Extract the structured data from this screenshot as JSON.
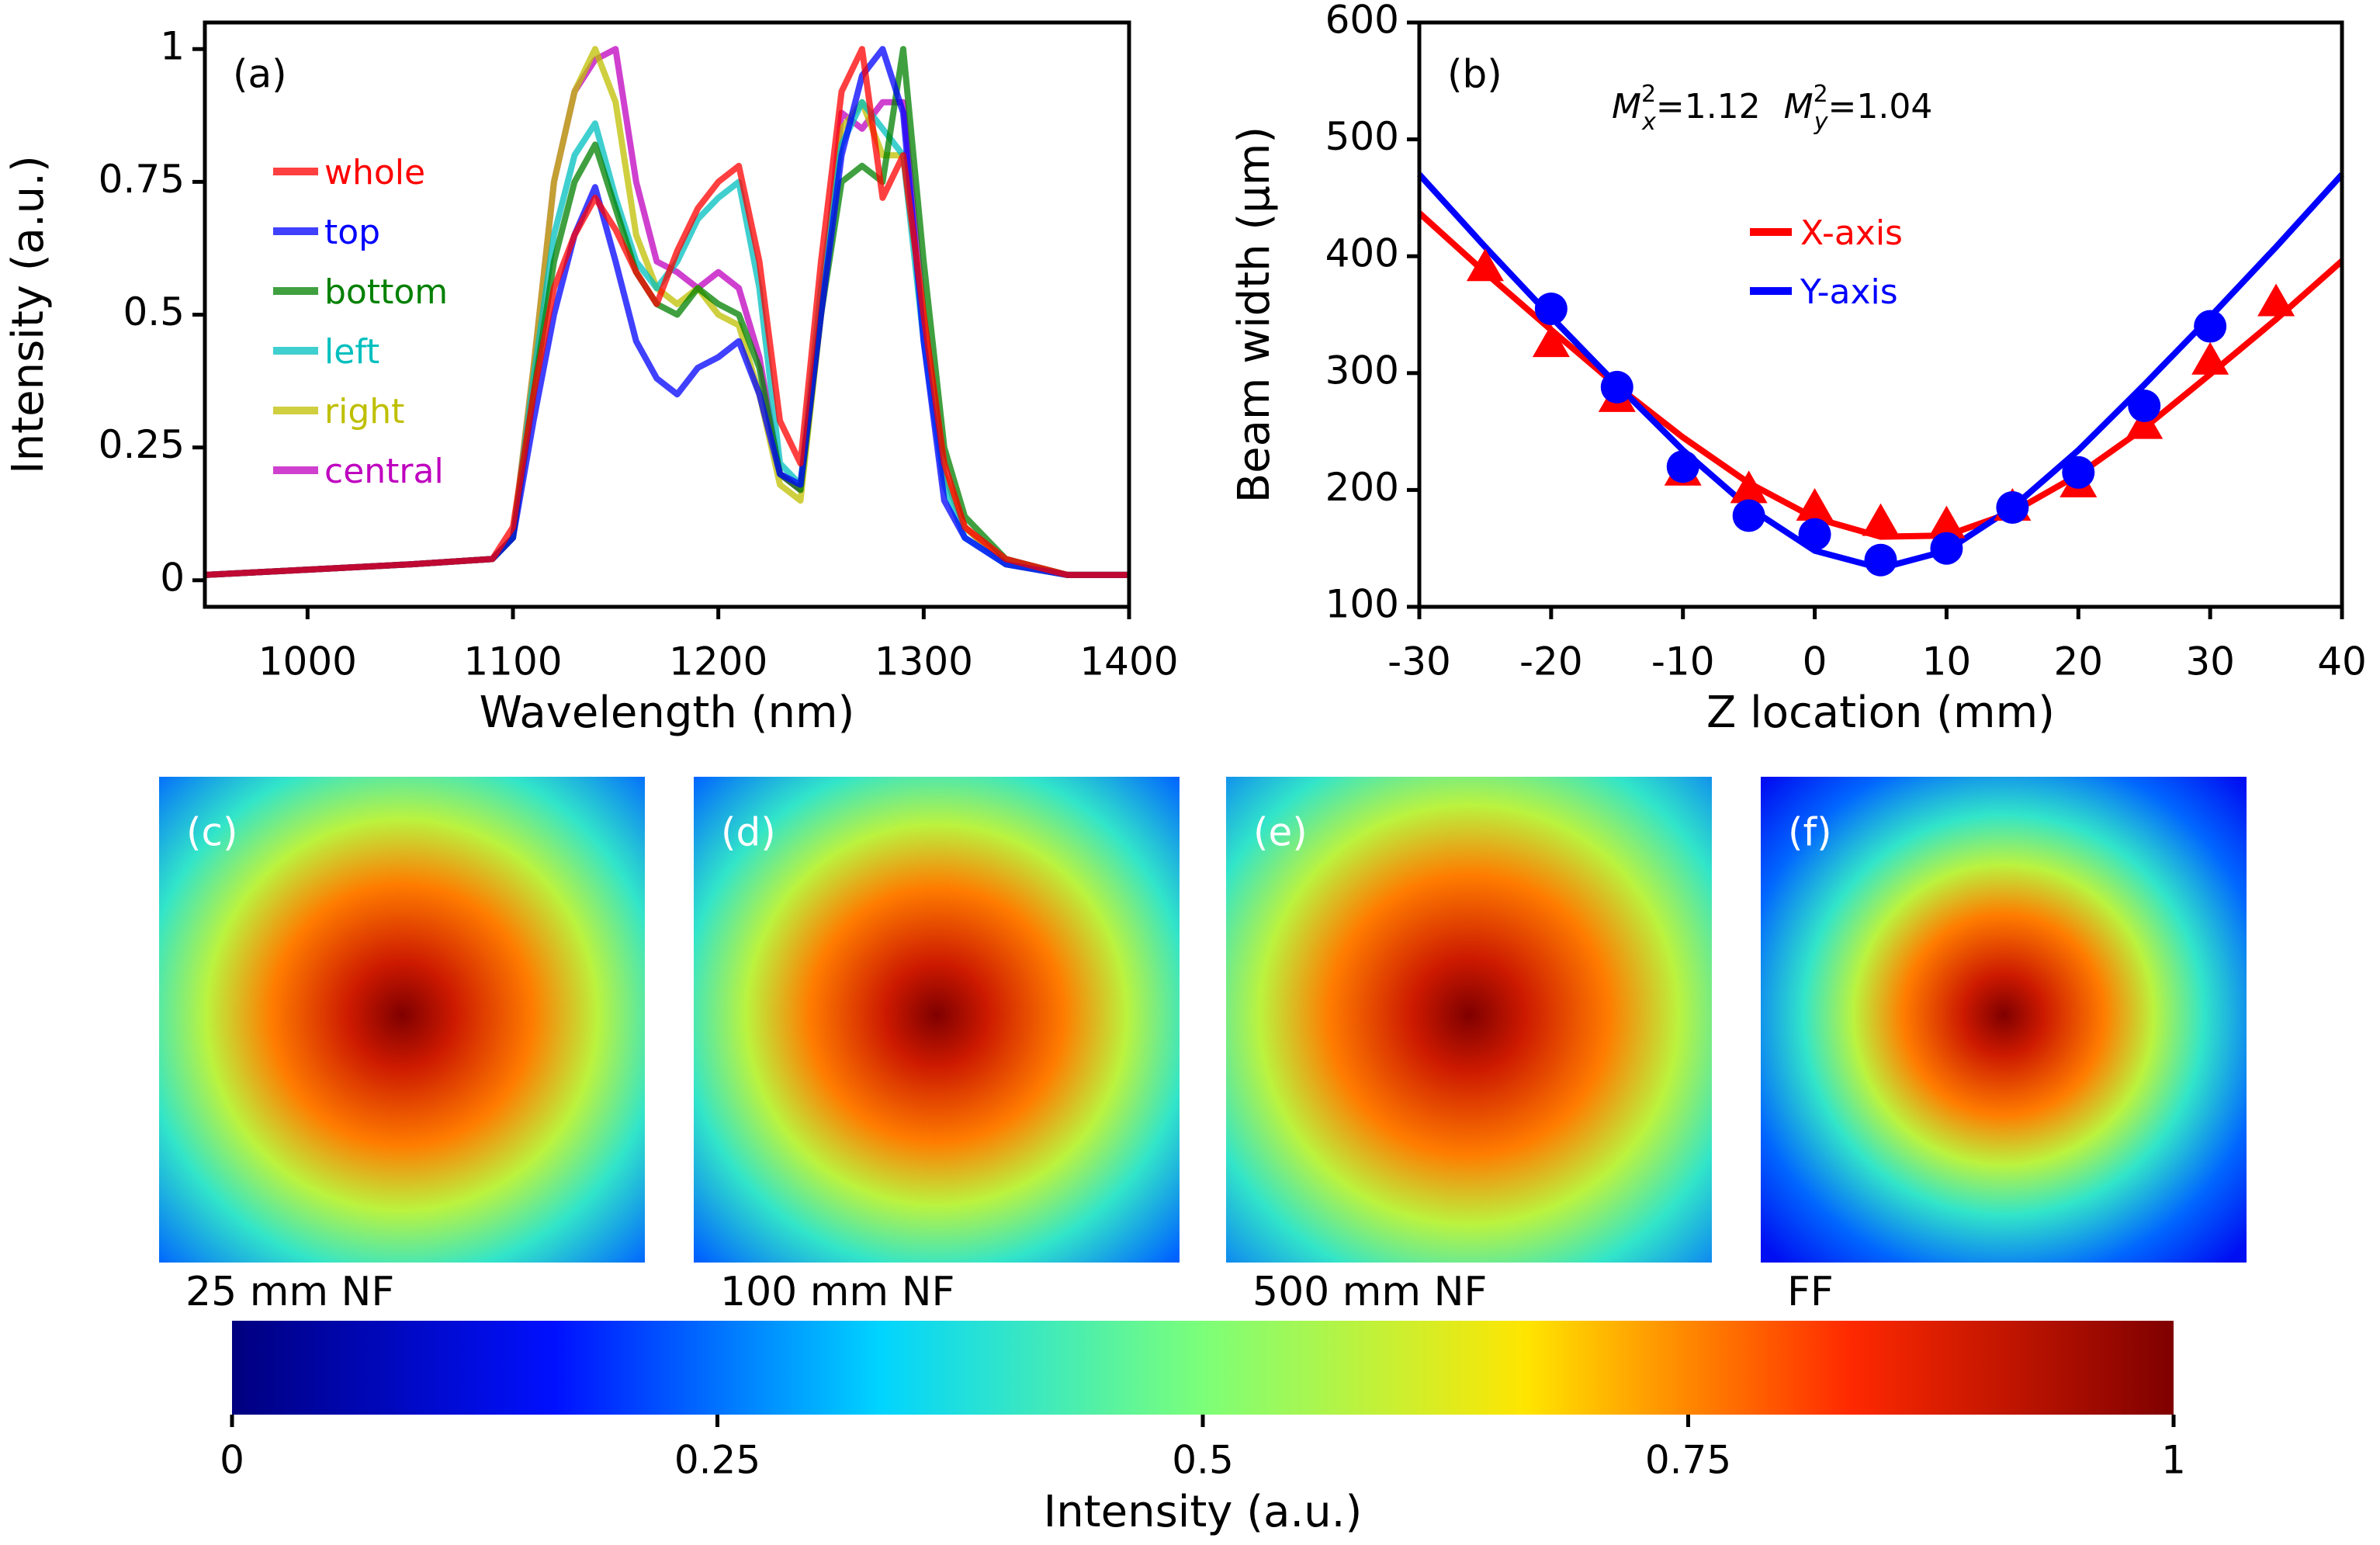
{
  "chart_data": [
    {
      "type": "line",
      "label": "(a)",
      "xlabel": "Wavelength (nm)",
      "ylabel": "Intensity (a.u.)",
      "x": [
        950,
        1000,
        1050,
        1090,
        1100,
        1110,
        1120,
        1130,
        1140,
        1150,
        1160,
        1170,
        1180,
        1190,
        1200,
        1210,
        1220,
        1230,
        1240,
        1250,
        1260,
        1270,
        1280,
        1290,
        1300,
        1310,
        1320,
        1340,
        1370,
        1400
      ],
      "xlim": [
        950,
        1400
      ],
      "xticks": [
        1000,
        1100,
        1200,
        1300,
        1400
      ],
      "ylim": [
        -0.05,
        1.05
      ],
      "yticks": [
        0,
        0.25,
        0.5,
        0.75,
        1
      ],
      "series": [
        {
          "name": "whole",
          "color": "#ff0000",
          "values": [
            0.01,
            0.02,
            0.03,
            0.04,
            0.1,
            0.35,
            0.55,
            0.65,
            0.72,
            0.66,
            0.58,
            0.52,
            0.62,
            0.7,
            0.75,
            0.78,
            0.6,
            0.3,
            0.22,
            0.6,
            0.92,
            1.0,
            0.72,
            0.8,
            0.5,
            0.22,
            0.1,
            0.04,
            0.01,
            0.01
          ]
        },
        {
          "name": "top",
          "color": "#0000ff",
          "values": [
            0.01,
            0.02,
            0.03,
            0.04,
            0.08,
            0.3,
            0.5,
            0.65,
            0.74,
            0.6,
            0.45,
            0.38,
            0.35,
            0.4,
            0.42,
            0.45,
            0.35,
            0.2,
            0.18,
            0.5,
            0.8,
            0.95,
            1.0,
            0.88,
            0.45,
            0.15,
            0.08,
            0.03,
            0.01,
            0.01
          ]
        },
        {
          "name": "bottom",
          "color": "#008000",
          "values": [
            0.01,
            0.02,
            0.03,
            0.04,
            0.08,
            0.35,
            0.6,
            0.75,
            0.82,
            0.7,
            0.58,
            0.52,
            0.5,
            0.55,
            0.52,
            0.5,
            0.4,
            0.2,
            0.17,
            0.5,
            0.75,
            0.78,
            0.75,
            1.0,
            0.6,
            0.25,
            0.12,
            0.04,
            0.01,
            0.01
          ]
        },
        {
          "name": "left",
          "color": "#00bfbf",
          "values": [
            0.01,
            0.02,
            0.03,
            0.04,
            0.08,
            0.38,
            0.65,
            0.8,
            0.86,
            0.72,
            0.6,
            0.55,
            0.6,
            0.68,
            0.72,
            0.75,
            0.55,
            0.22,
            0.18,
            0.55,
            0.82,
            0.9,
            0.85,
            0.8,
            0.45,
            0.18,
            0.08,
            0.03,
            0.01,
            0.01
          ]
        },
        {
          "name": "right",
          "color": "#bfbf00",
          "values": [
            0.01,
            0.02,
            0.03,
            0.04,
            0.08,
            0.4,
            0.75,
            0.92,
            1.0,
            0.9,
            0.65,
            0.55,
            0.52,
            0.55,
            0.5,
            0.48,
            0.35,
            0.18,
            0.15,
            0.5,
            0.85,
            0.9,
            0.8,
            0.8,
            0.5,
            0.2,
            0.1,
            0.03,
            0.01,
            0.01
          ]
        },
        {
          "name": "central",
          "color": "#bf00bf",
          "values": [
            0.01,
            0.02,
            0.03,
            0.04,
            0.08,
            0.4,
            0.75,
            0.92,
            0.98,
            1.0,
            0.75,
            0.6,
            0.58,
            0.55,
            0.58,
            0.55,
            0.42,
            0.2,
            0.17,
            0.5,
            0.88,
            0.85,
            0.9,
            0.9,
            0.5,
            0.2,
            0.1,
            0.03,
            0.01,
            0.01
          ]
        }
      ]
    },
    {
      "type": "scatter",
      "label": "(b)",
      "xlabel": "Z location (mm)",
      "ylabel": "Beam width (μm)",
      "annotations": [
        {
          "symbol": "M",
          "sub": "x",
          "sup": "2",
          "text": "=1.12"
        },
        {
          "symbol": "M",
          "sub": "y",
          "sup": "2",
          "text": "=1.04"
        }
      ],
      "xlim": [
        -30,
        40
      ],
      "xticks": [
        -30,
        -20,
        -10,
        0,
        10,
        20,
        30,
        40
      ],
      "ylim": [
        100,
        600
      ],
      "yticks": [
        100,
        200,
        300,
        400,
        500,
        600
      ],
      "series": [
        {
          "name": "X-axis",
          "color": "#ff0000",
          "marker": "triangle",
          "fit": {
            "x": [
              -30,
              -25,
              -20,
              -15,
              -10,
              -5,
              0,
              5,
              10,
              15,
              20,
              25,
              30,
              35,
              40
            ],
            "values": [
              437,
              386,
              337,
              289,
              245,
              206,
              176,
              160,
              161,
              181,
              213,
              253,
              299,
              346,
              396
            ]
          },
          "points": {
            "x": [
              -25,
              -20,
              -15,
              -10,
              -5,
              0,
              5,
              10,
              15,
              20,
              25,
              30,
              35
            ],
            "values": [
              390,
              325,
              278,
              215,
              200,
              185,
              172,
              170,
              185,
              205,
              255,
              310,
              360
            ]
          }
        },
        {
          "name": "Y-axis",
          "color": "#0000ff",
          "marker": "circle",
          "fit": {
            "x": [
              -30,
              -25,
              -20,
              -15,
              -10,
              -5,
              0,
              5,
              10,
              15,
              20,
              25,
              30,
              35,
              40
            ],
            "values": [
              470,
              408,
              348,
              290,
              234,
              185,
              148,
              133,
              148,
              185,
              234,
              290,
              348,
              408,
              470
            ]
          },
          "points": {
            "x": [
              -20,
              -15,
              -10,
              -5,
              0,
              5,
              10,
              15,
              20,
              25,
              30
            ],
            "values": [
              355,
              288,
              220,
              178,
              162,
              140,
              150,
              185,
              215,
              272,
              340
            ]
          }
        }
      ]
    },
    {
      "type": "image",
      "panels": [
        {
          "label": "(c)",
          "caption": "25 mm NF"
        },
        {
          "label": "(d)",
          "caption": "100 mm NF"
        },
        {
          "label": "(e)",
          "caption": "500 mm NF"
        },
        {
          "label": "(f)",
          "caption": "FF"
        }
      ]
    },
    {
      "type": "colorbar",
      "xlabel": "Intensity (a.u.)",
      "xlim": [
        0,
        1
      ],
      "xticks": [
        0,
        0.25,
        0.5,
        0.75,
        1
      ],
      "colormap": [
        "#00007f",
        "#0010ff",
        "#00d4ff",
        "#7cff79",
        "#ffe500",
        "#ff2900",
        "#7f0000"
      ]
    }
  ]
}
